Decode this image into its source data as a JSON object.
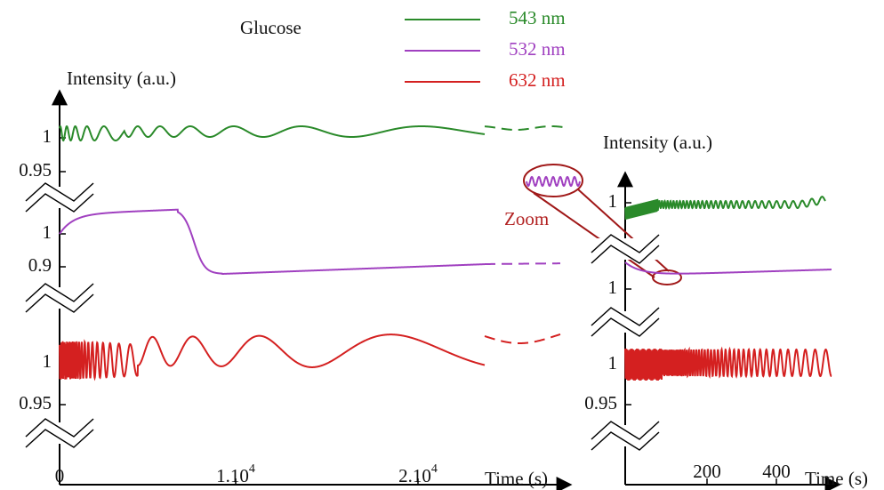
{
  "figure": {
    "title": "Glucose",
    "legend": [
      "543 nm",
      "532 nm",
      "632 nm"
    ],
    "annotation": "Zoom",
    "left_panel": {
      "y_label": "Intensity (a.u.)",
      "y_tick_labels": [
        "1",
        "0.95",
        "1",
        "0.9",
        "1",
        "0.95"
      ],
      "x_tick_labels": [
        {
          "base": "0"
        },
        {
          "base": "1.10",
          "exp": "4"
        },
        {
          "base": "2.10",
          "exp": "4"
        }
      ],
      "x_label": "Time (s)"
    },
    "right_panel": {
      "y_label": "Intensity (a.u.)",
      "y_tick_labels": [
        "1",
        "1",
        "1",
        "0.95"
      ],
      "x_tick_labels": [
        {
          "base": "200"
        },
        {
          "base": "400"
        }
      ],
      "x_label": "Time (s)"
    }
  }
}
